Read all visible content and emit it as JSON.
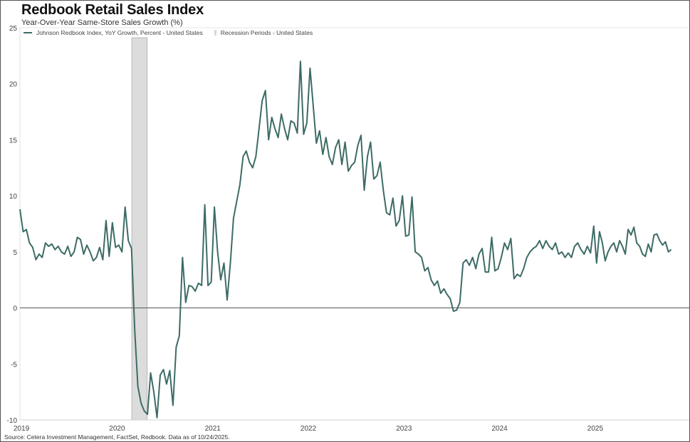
{
  "chart_data": {
    "type": "line",
    "title": "Redbook Retail Sales Index",
    "subtitle": "Year-Over-Year Same-Store Sales Growth (%)",
    "xlabel": "",
    "ylabel": "",
    "ylim": [
      -10,
      25
    ],
    "xlim": [
      2019,
      2025.95
    ],
    "y_ticks": [
      25,
      20,
      15,
      10,
      5,
      0,
      -5,
      -10
    ],
    "x_ticks": [
      "2019",
      "2020",
      "2021",
      "2022",
      "2023",
      "2024",
      "2025"
    ],
    "legend": {
      "placement": "top-left",
      "series_label": "Johnson Redbook Index, YoY Growth, Percent - United States",
      "recession_label": "Recession Periods - United States"
    },
    "recession_periods": [
      [
        2020.17,
        2020.33
      ]
    ],
    "series": [
      {
        "name": "Johnson Redbook Index, YoY Growth, Percent - United States",
        "color": "#3d6b66",
        "last_x": 2025.81,
        "values_by_year": {
          "2019": [
            8.8,
            6.8,
            7.0,
            5.8,
            5.4,
            4.3,
            4.8,
            4.5,
            5.8,
            5.5,
            5.7,
            5.2,
            5.5,
            5.0,
            4.8,
            5.5,
            4.6,
            5.0,
            6.3,
            6.1,
            4.8,
            5.6,
            5.0,
            4.2,
            4.5,
            5.4,
            4.3,
            7.8,
            4.6,
            7.6
          ],
          "2020": [
            5.4,
            5.6,
            5.0,
            9.0,
            6.0,
            5.3,
            -2,
            -7,
            -8.5,
            -9.2,
            -9.5,
            -5.8,
            -7.5,
            -9.8,
            -6,
            -5.5,
            -6.8,
            -5.6,
            -8.7,
            -3.5,
            -2.5,
            4.5,
            0.5,
            2.0,
            1.9,
            1.5,
            2.2,
            2.0,
            9.2,
            2.0
          ],
          "2021": [
            2.3,
            9.0,
            5.0,
            2.5,
            4.0,
            0.7,
            4.0,
            8.0,
            9.5,
            11.0,
            13.5,
            14.0,
            13.0,
            12.5,
            13.5,
            16.0,
            18.5,
            19.4,
            15.0,
            17.0,
            16.0,
            15.2,
            17.3,
            16.0,
            15.0,
            16.7,
            16.5,
            15.6,
            22.0,
            15.5
          ],
          "2022": [
            16.5,
            21.4,
            18.0,
            14.7,
            15.8,
            13.7,
            15.2,
            13.5,
            12.8,
            14.3,
            15.0,
            12.8,
            14.8,
            12.2,
            12.7,
            13.0,
            14.5,
            15.4,
            10.5,
            13.5,
            14.8,
            11.5,
            11.8,
            13.0,
            10.5,
            8.5,
            8.3,
            9.8,
            7.3,
            7.8
          ],
          "2023": [
            10.0,
            6.4,
            6.5,
            9.9,
            5.0,
            4.8,
            4.5,
            3.3,
            3.6,
            2.5,
            2.0,
            2.4,
            1.3,
            1.7,
            1.2,
            0.8,
            -0.3,
            -0.2,
            0.5,
            4.0,
            4.3,
            3.8,
            4.5,
            3.5,
            4.8,
            5.3,
            3.2,
            3.2,
            6.3,
            3.3
          ],
          "2024": [
            3.5,
            4.5,
            5.8,
            5.2,
            6.2,
            2.6,
            3.0,
            2.8,
            3.5,
            4.5,
            5.0,
            5.3,
            5.5,
            6.0,
            5.3,
            6.0,
            5.5,
            5.2,
            5.8,
            4.8,
            5.0,
            4.5,
            4.9,
            4.5,
            5.5,
            5.8,
            5.2,
            4.8,
            5.5,
            4.9
          ],
          "2025": [
            7.3,
            4.0,
            6.8,
            5.8,
            4.2,
            5.0,
            5.5,
            5.8,
            5.0,
            6.0,
            5.5,
            4.8,
            7.0,
            6.5,
            7.2,
            5.8,
            5.5,
            4.8,
            4.6,
            5.7,
            5.0,
            6.5,
            6.6,
            6.0,
            5.6,
            5.9,
            5.0,
            5.2
          ]
        }
      }
    ],
    "source": "Source: Cetera Investment Management, FactSet, Redbook. Data as of 10/24/2025."
  }
}
